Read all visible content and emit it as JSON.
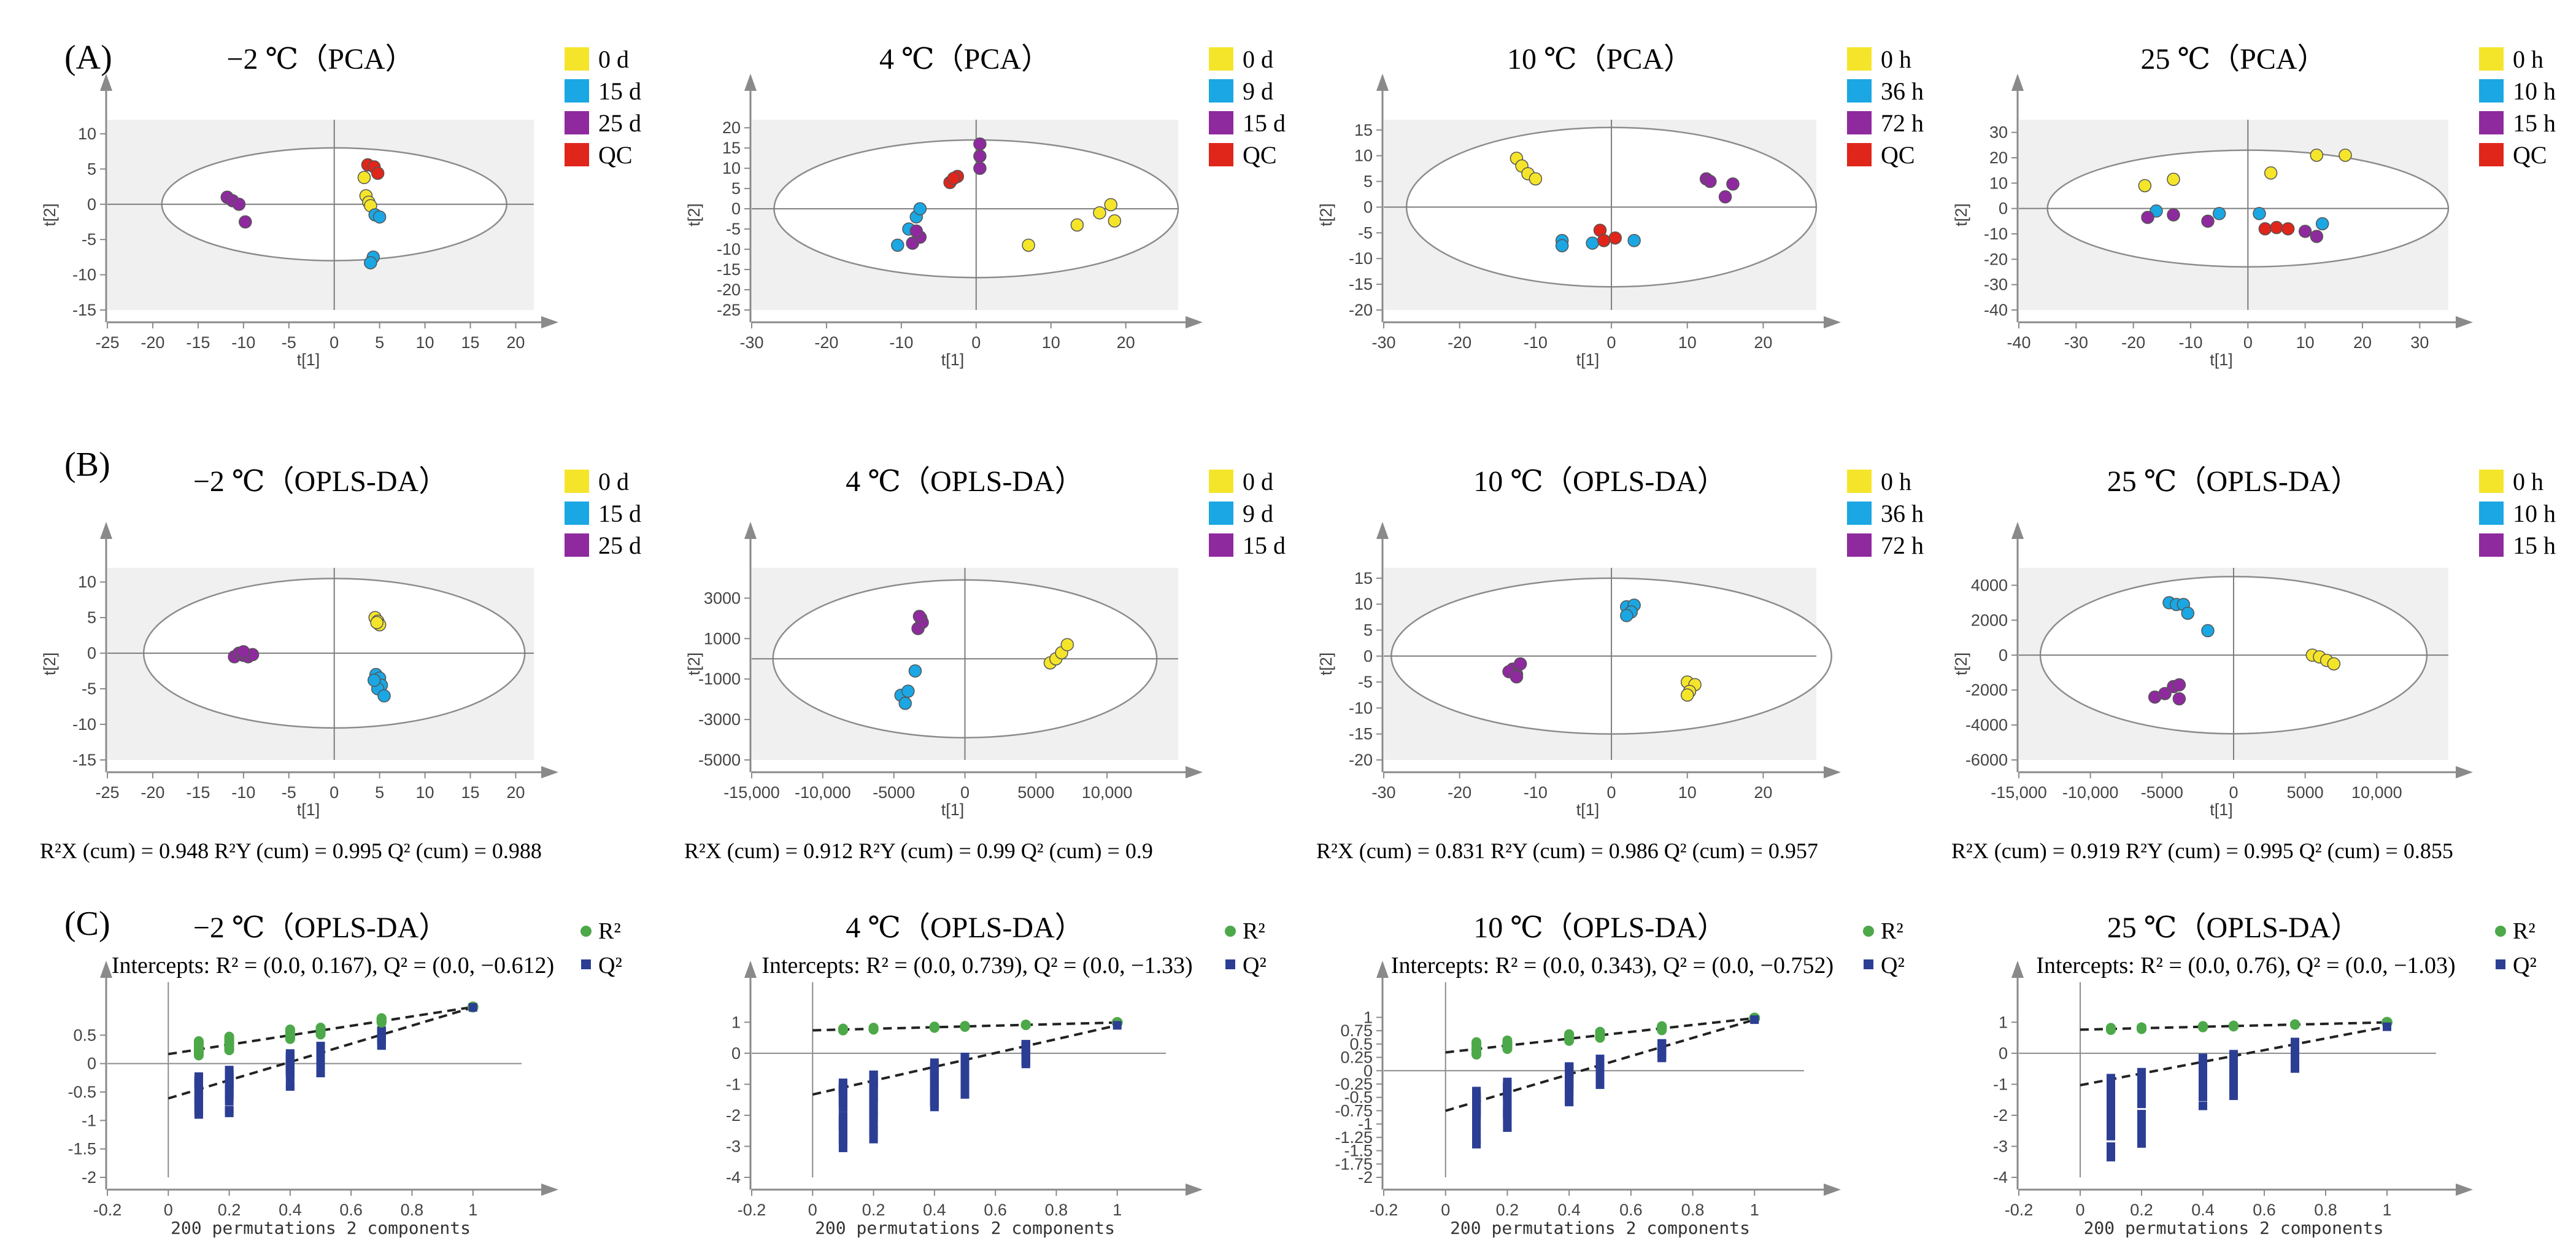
{
  "panel_labels": [
    "(A)",
    "(B)",
    "(C)"
  ],
  "colors": {
    "yellow": "#f5e52a",
    "blue": "#1aa7e3",
    "purple": "#8e2a9e",
    "red": "#e0251b",
    "green": "#4da84a",
    "navy": "#2c3e94",
    "axis": "#8a8a8a",
    "plot_bg": "#f0f0f0"
  },
  "chart_data": [
    {
      "type": "scatter",
      "row": "A",
      "title": "−2 ℃（PCA）",
      "xlabel": "t[1]",
      "ylabel": "t[2]",
      "xlim": [
        -25,
        22
      ],
      "ylim": [
        -15,
        12
      ],
      "xticks": [
        -25,
        -20,
        -15,
        -10,
        -5,
        0,
        5,
        10,
        15,
        20
      ],
      "yticks": [
        -15,
        -10,
        -5,
        0,
        5,
        10
      ],
      "ellipse": {
        "rx": 19,
        "ry": 8
      },
      "series": [
        {
          "name": "0 d",
          "color": "yellow",
          "points": [
            [
              3.3,
              3.8
            ],
            [
              3.5,
              1.2
            ],
            [
              3.8,
              0.3
            ],
            [
              4.0,
              -0.2
            ]
          ]
        },
        {
          "name": "15 d",
          "color": "blue",
          "points": [
            [
              4.5,
              -1.5
            ],
            [
              5.0,
              -1.8
            ],
            [
              4.3,
              -7.5
            ],
            [
              4.0,
              -8.3
            ]
          ]
        },
        {
          "name": "25 d",
          "color": "purple",
          "points": [
            [
              -11.8,
              1.0
            ],
            [
              -11.2,
              0.5
            ],
            [
              -10.5,
              0.0
            ],
            [
              -9.8,
              -2.5
            ]
          ]
        },
        {
          "name": "QC",
          "color": "red",
          "points": [
            [
              3.7,
              5.6
            ],
            [
              4.4,
              5.3
            ],
            [
              4.8,
              4.4
            ]
          ]
        }
      ]
    },
    {
      "type": "scatter",
      "row": "A",
      "title": "4 ℃（PCA）",
      "xlabel": "t[1]",
      "ylabel": "t[2]",
      "xlim": [
        -30,
        27
      ],
      "ylim": [
        -25,
        22
      ],
      "xticks": [
        -30,
        -20,
        -10,
        0,
        10,
        20
      ],
      "yticks": [
        -25,
        -20,
        -15,
        -10,
        -5,
        0,
        5,
        10,
        15,
        20
      ],
      "ellipse": {
        "rx": 27,
        "ry": 17
      },
      "series": [
        {
          "name": "0 d",
          "color": "yellow",
          "points": [
            [
              7.0,
              -9.0
            ],
            [
              13.5,
              -4.0
            ],
            [
              16.5,
              -1.0
            ],
            [
              18.0,
              1.0
            ],
            [
              18.5,
              -3.0
            ]
          ]
        },
        {
          "name": "9 d",
          "color": "blue",
          "points": [
            [
              -10.5,
              -9.0
            ],
            [
              -9.0,
              -5.0
            ],
            [
              -8.0,
              -2.0
            ],
            [
              -7.5,
              0.0
            ]
          ]
        },
        {
          "name": "15 d",
          "color": "purple",
          "points": [
            [
              -8.5,
              -8.5
            ],
            [
              -7.5,
              -7.0
            ],
            [
              -8.0,
              -5.5
            ],
            [
              0.5,
              10.0
            ],
            [
              0.5,
              13.0
            ],
            [
              0.5,
              16.0
            ]
          ]
        },
        {
          "name": "QC",
          "color": "red",
          "points": [
            [
              -3.5,
              6.5
            ],
            [
              -2.5,
              8.0
            ],
            [
              -3.0,
              7.5
            ]
          ]
        }
      ]
    },
    {
      "type": "scatter",
      "row": "A",
      "title": "10 ℃（PCA）",
      "xlabel": "t[1]",
      "ylabel": "t[2]",
      "xlim": [
        -30,
        27
      ],
      "ylim": [
        -20,
        17
      ],
      "xticks": [
        -30,
        -20,
        -10,
        0,
        10,
        20
      ],
      "yticks": [
        -20,
        -15,
        -10,
        -5,
        0,
        5,
        10,
        15
      ],
      "ellipse": {
        "rx": 27,
        "ry": 15.5
      },
      "series": [
        {
          "name": "0 h",
          "color": "yellow",
          "points": [
            [
              -12.5,
              9.5
            ],
            [
              -11.8,
              8.0
            ],
            [
              -11.0,
              6.5
            ],
            [
              -10.0,
              5.5
            ]
          ]
        },
        {
          "name": "36 h",
          "color": "blue",
          "points": [
            [
              -6.5,
              -6.5
            ],
            [
              -6.5,
              -7.5
            ],
            [
              -2.5,
              -7.0
            ],
            [
              3.0,
              -6.5
            ]
          ]
        },
        {
          "name": "72 h",
          "color": "purple",
          "points": [
            [
              12.5,
              5.5
            ],
            [
              13.0,
              5.0
            ],
            [
              15.0,
              2.0
            ],
            [
              16.0,
              4.5
            ]
          ]
        },
        {
          "name": "QC",
          "color": "red",
          "points": [
            [
              -1.5,
              -4.5
            ],
            [
              0.5,
              -6.0
            ],
            [
              -1.0,
              -6.5
            ]
          ]
        }
      ]
    },
    {
      "type": "scatter",
      "row": "A",
      "title": "25 ℃（PCA）",
      "xlabel": "t[1]",
      "ylabel": "t[2]",
      "xlim": [
        -40,
        35
      ],
      "ylim": [
        -40,
        35
      ],
      "xticks": [
        -40,
        -30,
        -20,
        -10,
        0,
        10,
        20,
        30
      ],
      "yticks": [
        -40,
        -30,
        -20,
        -10,
        0,
        10,
        20,
        30
      ],
      "ellipse": {
        "rx": 35,
        "ry": 23
      },
      "series": [
        {
          "name": "0 h",
          "color": "yellow",
          "points": [
            [
              -18.0,
              9.0
            ],
            [
              -13.0,
              11.5
            ],
            [
              4.0,
              14.0
            ],
            [
              12.0,
              21.0
            ],
            [
              17.0,
              21.0
            ]
          ]
        },
        {
          "name": "10 h",
          "color": "blue",
          "points": [
            [
              -16.0,
              -1.0
            ],
            [
              -5.0,
              -2.0
            ],
            [
              2.0,
              -2.0
            ],
            [
              13.0,
              -6.0
            ]
          ]
        },
        {
          "name": "15 h",
          "color": "purple",
          "points": [
            [
              -17.5,
              -3.5
            ],
            [
              -13.0,
              -2.5
            ],
            [
              -7.0,
              -5.0
            ],
            [
              10.0,
              -9.0
            ],
            [
              12.0,
              -11.0
            ]
          ]
        },
        {
          "name": "QC",
          "color": "red",
          "points": [
            [
              3.0,
              -8.0
            ],
            [
              5.0,
              -7.5
            ],
            [
              7.0,
              -8.0
            ]
          ]
        }
      ]
    },
    {
      "type": "scatter",
      "row": "B",
      "title": "−2 ℃（OPLS-DA）",
      "xlabel": "t[1]",
      "ylabel": "t[2]",
      "xlim": [
        -25,
        22
      ],
      "ylim": [
        -15,
        12
      ],
      "xticks": [
        -25,
        -20,
        -15,
        -10,
        -5,
        0,
        5,
        10,
        15,
        20
      ],
      "yticks": [
        -15,
        -10,
        -5,
        0,
        5,
        10
      ],
      "ellipse": {
        "rx": 21,
        "ry": 10.5
      },
      "stats": "R²X (cum) = 0.948  R²Y (cum) = 0.995  Q² (cum) = 0.988",
      "series": [
        {
          "name": "0 d",
          "color": "yellow",
          "points": [
            [
              4.5,
              5.0
            ],
            [
              4.8,
              4.5
            ],
            [
              5.0,
              4.0
            ],
            [
              4.7,
              4.3
            ]
          ]
        },
        {
          "name": "15 d",
          "color": "blue",
          "points": [
            [
              4.6,
              -3.0
            ],
            [
              5.0,
              -3.5
            ],
            [
              5.2,
              -4.5
            ],
            [
              4.8,
              -5.0
            ],
            [
              5.5,
              -6.0
            ],
            [
              4.4,
              -3.8
            ]
          ]
        },
        {
          "name": "25 d",
          "color": "purple",
          "points": [
            [
              -11.0,
              -0.5
            ],
            [
              -10.5,
              0.0
            ],
            [
              -10.0,
              -0.3
            ],
            [
              -9.5,
              -0.5
            ],
            [
              -9.0,
              -0.2
            ],
            [
              -10.0,
              0.2
            ]
          ]
        }
      ]
    },
    {
      "type": "scatter",
      "row": "B",
      "title": "4 ℃（OPLS-DA）",
      "xlabel": "t[1]",
      "ylabel": "t[2]",
      "xlim": [
        -15000,
        15000
      ],
      "ylim": [
        -5000,
        4500
      ],
      "xticks": [
        -15000,
        -10000,
        -5000,
        0,
        5000,
        10000
      ],
      "xticklabels": [
        "-15,000",
        "-10,000",
        "-5000",
        "0",
        "5000",
        "10,000"
      ],
      "yticks": [
        -5000,
        -3000,
        -1000,
        1000,
        3000
      ],
      "ellipse": {
        "rx": 13500,
        "ry": 3900
      },
      "stats": "R²X (cum) = 0.912  R²Y (cum) = 0.99  Q² (cum) = 0.9",
      "series": [
        {
          "name": "0 d",
          "color": "yellow",
          "points": [
            [
              6000,
              -200
            ],
            [
              6400,
              0
            ],
            [
              6800,
              300
            ],
            [
              7200,
              700
            ]
          ]
        },
        {
          "name": "9 d",
          "color": "blue",
          "points": [
            [
              -4500,
              -1800
            ],
            [
              -4200,
              -2200
            ],
            [
              -4000,
              -1600
            ],
            [
              -3500,
              -600
            ]
          ]
        },
        {
          "name": "15 d",
          "color": "purple",
          "points": [
            [
              -3300,
              1500
            ],
            [
              -3100,
              2000
            ],
            [
              -3000,
              1800
            ],
            [
              -3200,
              2100
            ]
          ]
        }
      ]
    },
    {
      "type": "scatter",
      "row": "B",
      "title": "10 ℃（OPLS-DA）",
      "xlabel": "t[1]",
      "ylabel": "t[2]",
      "xlim": [
        -30,
        27
      ],
      "ylim": [
        -20,
        17
      ],
      "xticks": [
        -30,
        -20,
        -10,
        0,
        10,
        20
      ],
      "yticks": [
        -20,
        -15,
        -10,
        -5,
        0,
        5,
        10,
        15
      ],
      "ellipse": {
        "rx": 29,
        "ry": 15
      },
      "stats": "R²X (cum) = 0.831  R²Y (cum) = 0.986  Q² (cum) = 0.957",
      "series": [
        {
          "name": "0 h",
          "color": "yellow",
          "points": [
            [
              10.0,
              -5.0
            ],
            [
              11.0,
              -5.5
            ],
            [
              10.3,
              -6.8
            ],
            [
              10.0,
              -7.5
            ]
          ]
        },
        {
          "name": "36 h",
          "color": "blue",
          "points": [
            [
              2.0,
              9.5
            ],
            [
              3.0,
              9.8
            ],
            [
              2.6,
              8.5
            ],
            [
              2.0,
              7.8
            ]
          ]
        },
        {
          "name": "72 h",
          "color": "purple",
          "points": [
            [
              -13.0,
              -2.5
            ],
            [
              -12.5,
              -3.5
            ],
            [
              -13.5,
              -3.0
            ],
            [
              -12.5,
              -4.0
            ],
            [
              -12.0,
              -1.5
            ]
          ]
        }
      ]
    },
    {
      "type": "scatter",
      "row": "B",
      "title": "25 ℃（OPLS-DA）",
      "xlabel": "t[1]",
      "ylabel": "t[2]",
      "xlim": [
        -15000,
        15000
      ],
      "ylim": [
        -6000,
        5000
      ],
      "xticks": [
        -15000,
        -10000,
        -5000,
        0,
        5000,
        10000
      ],
      "xticklabels": [
        "-15,000",
        "-10,000",
        "-5000",
        "0",
        "5000",
        "10,000"
      ],
      "yticks": [
        -6000,
        -4000,
        -2000,
        0,
        2000,
        4000
      ],
      "ellipse": {
        "rx": 13500,
        "ry": 4500
      },
      "stats": "R²X (cum) = 0.919  R²Y (cum) = 0.995  Q² (cum) = 0.855",
      "series": [
        {
          "name": "0 h",
          "color": "yellow",
          "points": [
            [
              5500,
              0
            ],
            [
              6000,
              -100
            ],
            [
              6500,
              -300
            ],
            [
              7000,
              -500
            ]
          ]
        },
        {
          "name": "10 h",
          "color": "blue",
          "points": [
            [
              -4500,
              3000
            ],
            [
              -4000,
              2900
            ],
            [
              -3500,
              2900
            ],
            [
              -3200,
              2400
            ],
            [
              -1800,
              1400
            ]
          ]
        },
        {
          "name": "15 h",
          "color": "purple",
          "points": [
            [
              -5500,
              -2400
            ],
            [
              -4800,
              -2200
            ],
            [
              -4200,
              -1800
            ],
            [
              -3800,
              -1700
            ],
            [
              -3800,
              -2500
            ]
          ]
        }
      ]
    },
    {
      "type": "scatter",
      "row": "C",
      "title": "−2 ℃（OPLS-DA）",
      "intercepts": "Intercepts: R² = (0.0, 0.167), Q² = (0.0, −0.612)",
      "xlabel": "200 permutations 2 components",
      "xlim": [
        -0.2,
        1.2
      ],
      "ylim": [
        -2,
        1
      ],
      "xticks": [
        -0.2,
        0,
        0.2,
        0.4,
        0.6,
        0.8,
        1
      ],
      "yticks": [
        -2,
        -1.5,
        -1,
        -0.5,
        0,
        0.5
      ],
      "r2_intercept": 0.167,
      "q2_intercept": -0.612,
      "r2_ref": 0.995,
      "q2_ref": 0.988,
      "r2_spread": 0.6,
      "q2_min_at_low": -1.5,
      "series": [
        {
          "name": "R²",
          "color": "green"
        },
        {
          "name": "Q²",
          "color": "navy"
        }
      ]
    },
    {
      "type": "scatter",
      "row": "C",
      "title": "4 ℃（OPLS-DA）",
      "intercepts": "Intercepts: R² = (0.0, 0.739), Q² = (0.0, −1.33)",
      "xlabel": "200 permutations 2 components",
      "xlim": [
        -0.2,
        1.2
      ],
      "ylim": [
        -4,
        1.5
      ],
      "xticks": [
        -0.2,
        0,
        0.2,
        0.4,
        0.6,
        0.8,
        1
      ],
      "yticks": [
        -4,
        -3,
        -2,
        -1,
        0,
        1
      ],
      "r2_intercept": 0.739,
      "q2_intercept": -1.33,
      "r2_ref": 0.99,
      "q2_ref": 0.9,
      "r2_spread": 0.15,
      "q2_min_at_low": -3.8,
      "series": [
        {
          "name": "R²",
          "color": "green"
        },
        {
          "name": "Q²",
          "color": "navy"
        }
      ]
    },
    {
      "type": "scatter",
      "row": "C",
      "title": "10 ℃（OPLS-DA）",
      "intercepts": "Intercepts: R² = (0.0, 0.343), Q² = (0.0, −0.752)",
      "xlabel": "200 permutations 2 components",
      "xlim": [
        -0.2,
        1.2
      ],
      "ylim": [
        -2,
        1.2
      ],
      "xticks": [
        -0.2,
        0,
        0.2,
        0.4,
        0.6,
        0.8,
        1
      ],
      "yticks": [
        -2,
        -1.75,
        -1.5,
        -1.25,
        -1,
        -0.75,
        -0.5,
        -0.25,
        0,
        0.25,
        0.5,
        0.75,
        1
      ],
      "r2_intercept": 0.343,
      "q2_intercept": -0.752,
      "r2_ref": 0.986,
      "q2_ref": 0.957,
      "r2_spread": 0.5,
      "q2_min_at_low": -1.8,
      "series": [
        {
          "name": "R²",
          "color": "green"
        },
        {
          "name": "Q²",
          "color": "navy"
        }
      ]
    },
    {
      "type": "scatter",
      "row": "C",
      "title": "25 ℃（OPLS-DA）",
      "intercepts": "Intercepts: R² = (0.0, 0.76), Q² = (0.0, −1.03)",
      "xlabel": "200 permutations 2 components",
      "xlim": [
        -0.2,
        1.2
      ],
      "ylim": [
        -4,
        1.5
      ],
      "xticks": [
        -0.2,
        0,
        0.2,
        0.4,
        0.6,
        0.8,
        1
      ],
      "yticks": [
        -4,
        -3,
        -2,
        -1,
        0,
        1
      ],
      "r2_intercept": 0.76,
      "q2_intercept": -1.03,
      "r2_ref": 0.995,
      "q2_ref": 0.855,
      "r2_spread": 0.15,
      "q2_min_at_low": -3.9,
      "series": [
        {
          "name": "R²",
          "color": "green"
        },
        {
          "name": "Q²",
          "color": "navy"
        }
      ]
    }
  ]
}
